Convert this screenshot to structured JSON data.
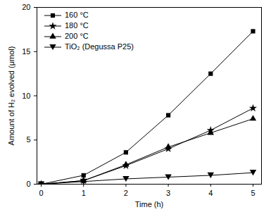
{
  "chart_data": {
    "type": "line",
    "x_label": "Time (h)",
    "y_label": "Amount of H₂ evolved (μmol)",
    "x": [
      0,
      1,
      2,
      3,
      4,
      5
    ],
    "series": [
      {
        "name": "160 °C",
        "color": "#000000",
        "marker": "square",
        "values": [
          0,
          1.0,
          3.6,
          7.8,
          12.5,
          17.3
        ]
      },
      {
        "name": "180 °C",
        "color": "#000000",
        "marker": "star",
        "values": [
          0,
          0.4,
          2.1,
          4.0,
          6.1,
          8.6
        ]
      },
      {
        "name": "200 °C",
        "color": "#000000",
        "marker": "triangle",
        "values": [
          0,
          0.4,
          2.2,
          4.2,
          5.8,
          7.4
        ]
      },
      {
        "name": "TiO₂ (Degussa P25)",
        "color": "#000000",
        "marker": "triangle-down",
        "values": [
          0,
          0.3,
          0.6,
          0.8,
          1.0,
          1.3
        ]
      }
    ],
    "xlim": [
      -0.1,
      5.2
    ],
    "xticks": [
      0,
      1,
      2,
      3,
      4,
      5
    ],
    "ylim": [
      0,
      20
    ],
    "yticks": [
      0,
      5,
      10,
      15,
      20
    ],
    "legend": "top-left",
    "grid": false
  }
}
